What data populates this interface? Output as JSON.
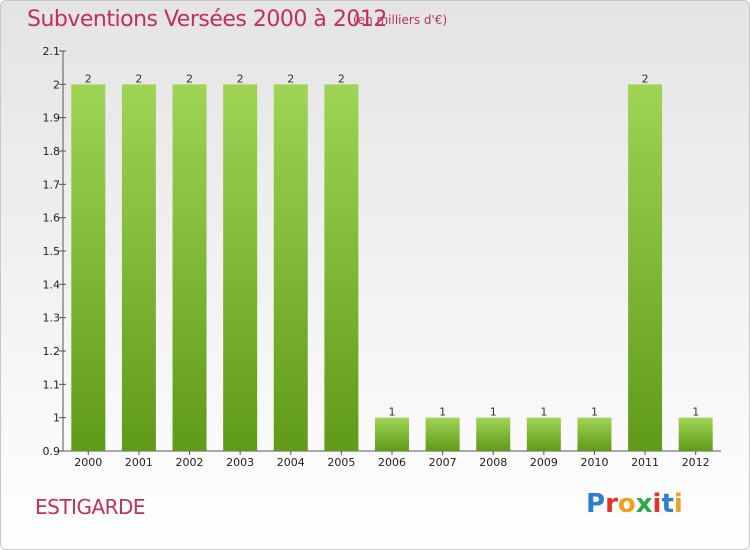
{
  "header": {
    "title": "Subventions Versées 2000 à 2012",
    "subtitle": "(en milliers d'€)"
  },
  "footer": {
    "commune": "ESTIGARDE",
    "logo_text": "Proxiti",
    "logo_colors": [
      "#2a7fd4",
      "#e8302a",
      "#f0a020",
      "#2aa84a",
      "#e8302a",
      "#2a7fd4",
      "#f0a020"
    ]
  },
  "colors": {
    "title": "#c0305a",
    "bar_top": "#9fd455",
    "bar_bottom": "#5f9a18"
  },
  "chart_data": {
    "type": "bar",
    "categories": [
      "2000",
      "2001",
      "2002",
      "2003",
      "2004",
      "2005",
      "2006",
      "2007",
      "2008",
      "2009",
      "2010",
      "2011",
      "2012"
    ],
    "values": [
      2,
      2,
      2,
      2,
      2,
      2,
      1,
      1,
      1,
      1,
      1,
      2,
      1
    ],
    "data_labels": [
      "2",
      "2",
      "2",
      "2",
      "2",
      "2",
      "1",
      "1",
      "1",
      "1",
      "1",
      "2",
      "1"
    ],
    "yticks": [
      0.9,
      1,
      1.1,
      1.2,
      1.3,
      1.4,
      1.5,
      1.6,
      1.7,
      1.8,
      1.9,
      2,
      2.1
    ],
    "ytick_labels": [
      "0.9",
      "1",
      "1.1",
      "1.2",
      "1.3",
      "1.4",
      "1.5",
      "1.6",
      "1.7",
      "1.8",
      "1.9",
      "2",
      "2.1"
    ],
    "ylim": [
      0.9,
      2.1
    ],
    "grid": false,
    "title": "Subventions Versées 2000 à 2012",
    "xlabel": "",
    "ylabel": ""
  }
}
